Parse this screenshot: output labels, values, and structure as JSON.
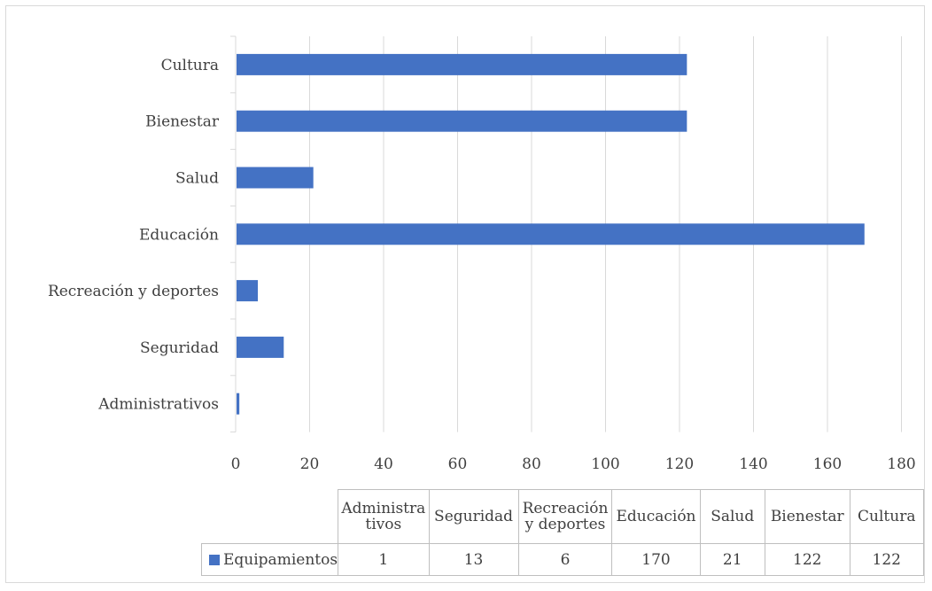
{
  "colors": {
    "bar": "#4472c4",
    "grid": "#d9d9d9",
    "text": "#404040"
  },
  "legend": {
    "icon": "square-legend-icon"
  },
  "chart_data": {
    "type": "bar",
    "orientation": "horizontal",
    "categories": [
      "Administrativos",
      "Seguridad",
      "Recreación y deportes",
      "Educación",
      "Salud",
      "Bienestar",
      "Cultura"
    ],
    "series": [
      {
        "name": "Equipamientos",
        "values": [
          1,
          13,
          6,
          170,
          21,
          122,
          122
        ]
      }
    ],
    "x_ticks": [
      "0",
      "20",
      "40",
      "60",
      "80",
      "100",
      "120",
      "140",
      "160",
      "180"
    ],
    "xlim": [
      0,
      180
    ],
    "grid": true,
    "legend_placement": "data-table-left",
    "data_table": {
      "headers": [
        "Administra tivos",
        "Seguridad",
        "Recreación y deportes",
        "Educación",
        "Salud",
        "Bienestar",
        "Cultura"
      ],
      "row_label": "Equipamientos",
      "values": [
        "1",
        "13",
        "6",
        "170",
        "21",
        "122",
        "122"
      ]
    }
  }
}
